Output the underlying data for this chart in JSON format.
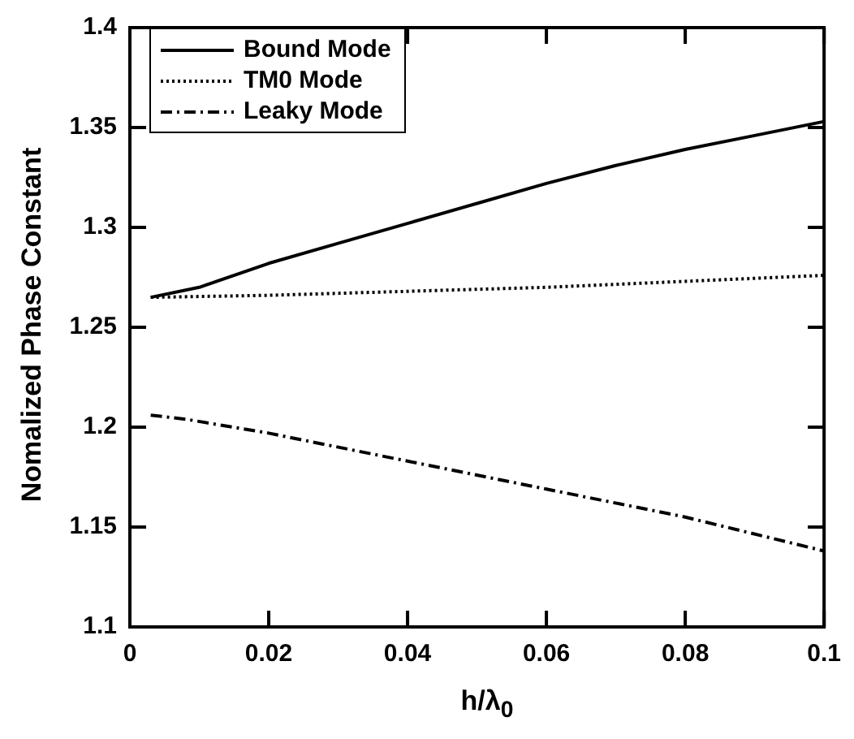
{
  "chart_data": {
    "type": "line",
    "xlabel": "h/λ$_{0}$",
    "ylabel": "Nomalized Phase Constant",
    "xlim": [
      0,
      0.1
    ],
    "xticks": [
      0,
      0.02,
      0.04,
      0.06,
      0.08,
      0.1
    ],
    "ylim": [
      1.1,
      1.4
    ],
    "yticks": [
      1.1,
      1.15,
      1.2,
      1.25,
      1.3,
      1.35,
      1.4
    ],
    "grid": false,
    "legend": "top left",
    "marker": "none",
    "series": [
      {
        "name": "Bound Mode",
        "color": "#000000",
        "line_style": "solid",
        "x": [
          0.003,
          0.01,
          0.02,
          0.03,
          0.04,
          0.05,
          0.06,
          0.07,
          0.08,
          0.09,
          0.1
        ],
        "values": [
          1.265,
          1.27,
          1.282,
          1.292,
          1.302,
          1.312,
          1.322,
          1.331,
          1.339,
          1.346,
          1.353
        ]
      },
      {
        "name": "TM0 Mode",
        "color": "#000000",
        "line_style": "dotted",
        "x": [
          0.003,
          0.02,
          0.04,
          0.06,
          0.08,
          0.1
        ],
        "values": [
          1.265,
          1.266,
          1.268,
          1.27,
          1.273,
          1.276
        ]
      },
      {
        "name": "Leaky Mode",
        "color": "#000000",
        "line_style": "dashdot",
        "x": [
          0.003,
          0.008,
          0.02,
          0.04,
          0.06,
          0.08,
          0.1
        ],
        "values": [
          1.206,
          1.204,
          1.197,
          1.183,
          1.169,
          1.155,
          1.138
        ]
      }
    ]
  }
}
